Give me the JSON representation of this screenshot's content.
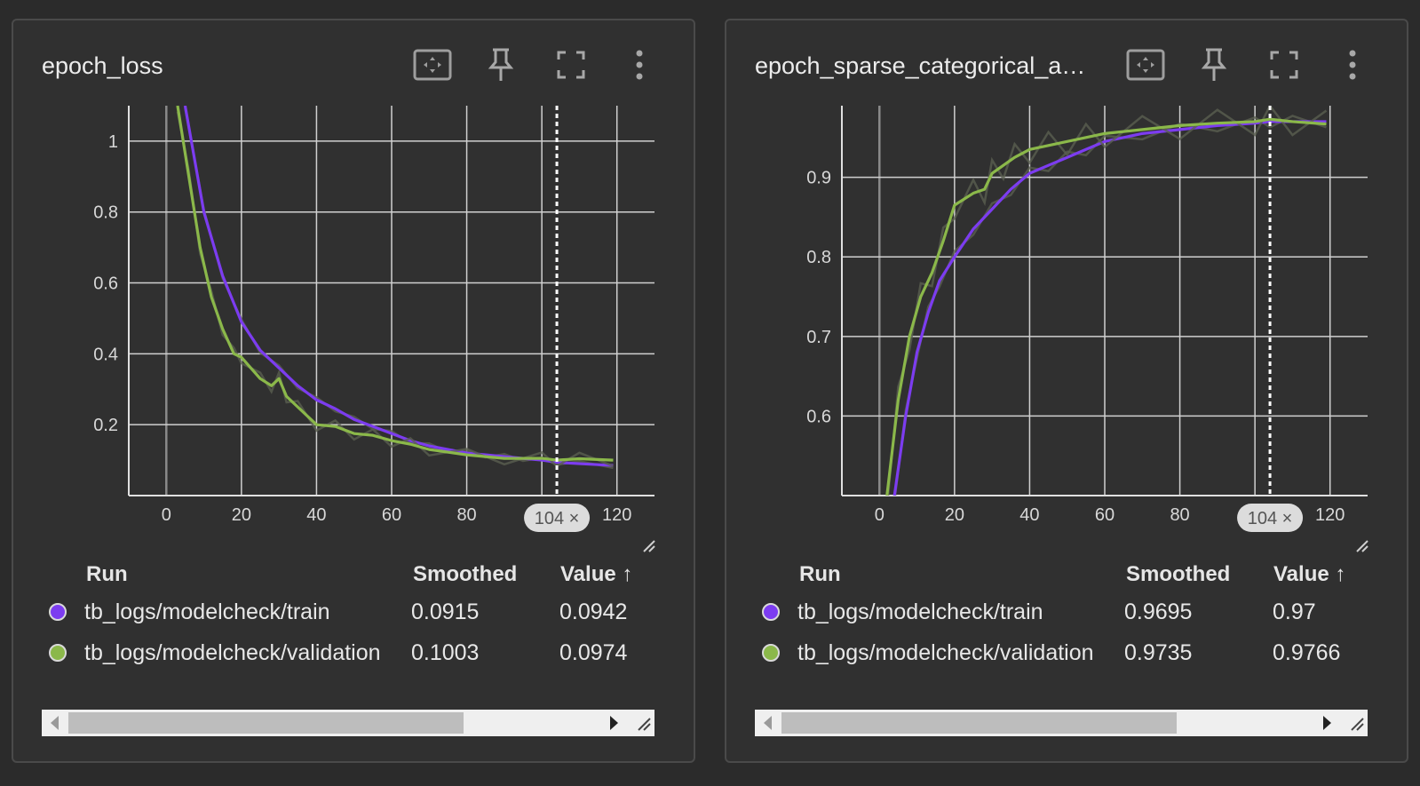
{
  "colors": {
    "train": "#7c3cf0",
    "validation": "#8bb84a"
  },
  "cards": [
    {
      "title": "epoch_loss",
      "table": {
        "headers": {
          "run": "Run",
          "smoothed": "Smoothed",
          "value": "Value ↑"
        },
        "rows": [
          {
            "run": "tb_logs/modelcheck/train",
            "smoothed": "0.0915",
            "value": "0.0942"
          },
          {
            "run": "tb_logs/modelcheck/validation",
            "smoothed": "0.1003",
            "value": "0.0974"
          }
        ]
      },
      "cursor_label": "104 ×"
    },
    {
      "title": "epoch_sparse_categorical_ac...",
      "table": {
        "headers": {
          "run": "Run",
          "smoothed": "Smoothed",
          "value": "Value ↑"
        },
        "rows": [
          {
            "run": "tb_logs/modelcheck/train",
            "smoothed": "0.9695",
            "value": "0.97"
          },
          {
            "run": "tb_logs/modelcheck/validation",
            "smoothed": "0.9735",
            "value": "0.9766"
          }
        ]
      },
      "cursor_label": "104 ×"
    }
  ],
  "chart_data": [
    {
      "type": "line",
      "xlim": [
        -10,
        130
      ],
      "ylim": [
        0,
        1.1
      ],
      "xticks": [
        "0",
        "20",
        "40",
        "60",
        "80",
        "120"
      ],
      "xtick_values": [
        0,
        20,
        40,
        60,
        80,
        120
      ],
      "yticks": [
        "0.2",
        "0.4",
        "0.6",
        "0.8",
        "1"
      ],
      "ytick_values": [
        0.2,
        0.4,
        0.6,
        0.8,
        1
      ],
      "grid": true,
      "cursor_x": 104,
      "series": [
        {
          "name": "tb_logs/modelcheck/train",
          "color": "#7c3cf0",
          "x": [
            5,
            10,
            15,
            20,
            25,
            30,
            35,
            40,
            45,
            50,
            55,
            60,
            65,
            70,
            75,
            80,
            85,
            90,
            95,
            100,
            104,
            110,
            119
          ],
          "y": [
            1.1,
            0.8,
            0.62,
            0.49,
            0.41,
            0.36,
            0.31,
            0.27,
            0.245,
            0.215,
            0.195,
            0.175,
            0.155,
            0.14,
            0.13,
            0.12,
            0.115,
            0.11,
            0.105,
            0.1,
            0.094,
            0.09,
            0.085
          ]
        },
        {
          "name": "tb_logs/modelcheck/validation",
          "color": "#8bb84a",
          "x": [
            3,
            6,
            9,
            12,
            15,
            18,
            20,
            25,
            28,
            30,
            32,
            35,
            40,
            45,
            50,
            55,
            60,
            65,
            70,
            80,
            90,
            100,
            104,
            110,
            119
          ],
          "y": [
            1.1,
            0.9,
            0.7,
            0.56,
            0.47,
            0.4,
            0.39,
            0.33,
            0.31,
            0.33,
            0.28,
            0.25,
            0.2,
            0.195,
            0.175,
            0.17,
            0.155,
            0.145,
            0.13,
            0.115,
            0.105,
            0.105,
            0.1,
            0.104,
            0.1
          ]
        }
      ]
    },
    {
      "type": "line",
      "xlim": [
        -10,
        130
      ],
      "ylim": [
        0.5,
        0.99
      ],
      "xticks": [
        "0",
        "20",
        "40",
        "60",
        "80",
        "120"
      ],
      "xtick_values": [
        0,
        20,
        40,
        60,
        80,
        120
      ],
      "yticks": [
        "0.6",
        "0.7",
        "0.8",
        "0.9"
      ],
      "ytick_values": [
        0.6,
        0.7,
        0.8,
        0.9
      ],
      "grid": true,
      "cursor_x": 104,
      "series": [
        {
          "name": "tb_logs/modelcheck/train",
          "color": "#7c3cf0",
          "x": [
            4,
            7,
            10,
            13,
            16,
            20,
            25,
            30,
            35,
            40,
            45,
            50,
            55,
            60,
            70,
            80,
            90,
            100,
            104,
            110,
            119
          ],
          "y": [
            0.5,
            0.6,
            0.68,
            0.73,
            0.77,
            0.8,
            0.835,
            0.86,
            0.885,
            0.905,
            0.915,
            0.925,
            0.935,
            0.945,
            0.955,
            0.96,
            0.965,
            0.968,
            0.97,
            0.97,
            0.97
          ]
        },
        {
          "name": "tb_logs/modelcheck/validation",
          "color": "#8bb84a",
          "x": [
            2,
            5,
            8,
            11,
            14,
            17,
            20,
            25,
            28,
            30,
            33,
            36,
            40,
            45,
            50,
            55,
            60,
            70,
            80,
            90,
            100,
            104,
            110,
            119
          ],
          "y": [
            0.5,
            0.62,
            0.7,
            0.75,
            0.78,
            0.82,
            0.865,
            0.88,
            0.885,
            0.905,
            0.915,
            0.925,
            0.935,
            0.94,
            0.945,
            0.95,
            0.955,
            0.96,
            0.965,
            0.968,
            0.97,
            0.973,
            0.97,
            0.967
          ]
        }
      ]
    }
  ]
}
